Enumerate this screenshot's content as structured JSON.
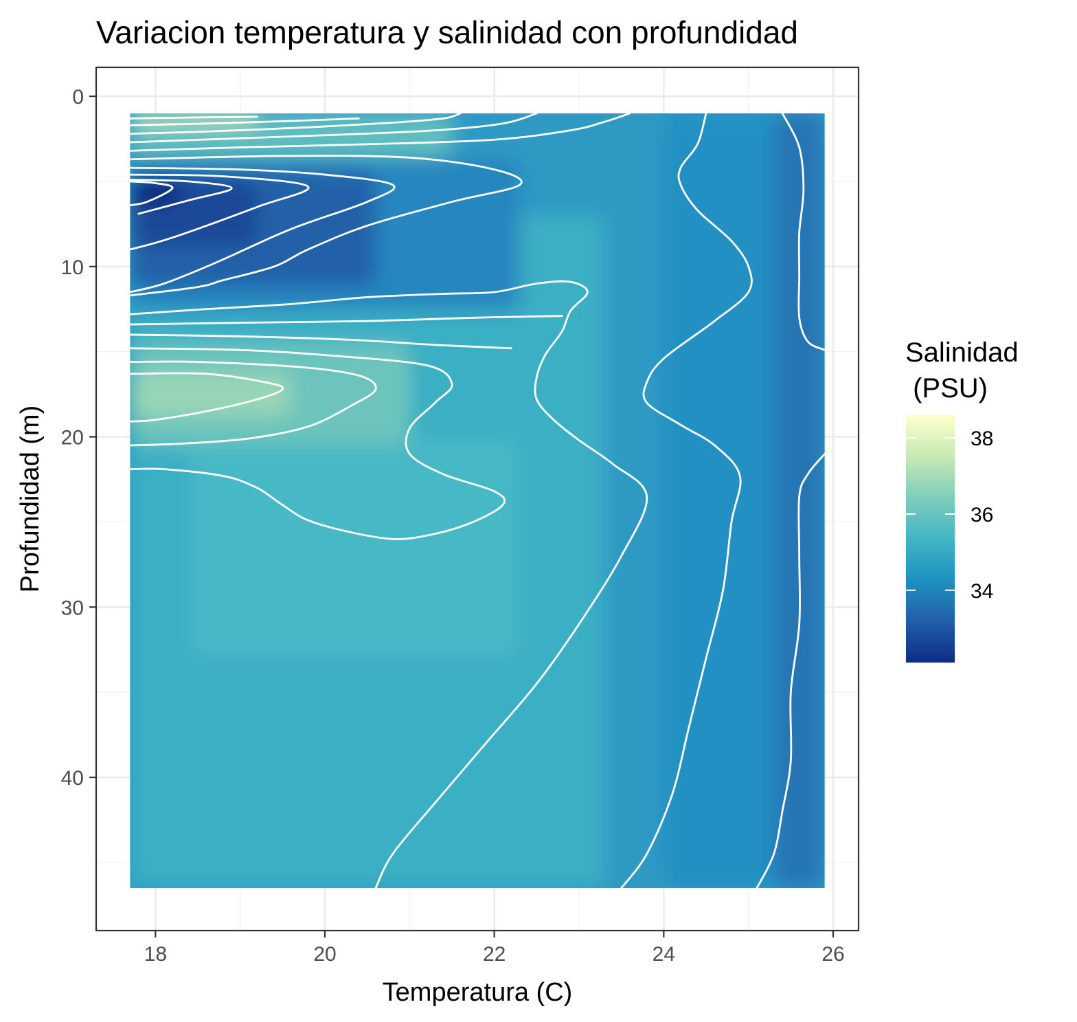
{
  "chart_data": {
    "type": "heatmap",
    "title": "Variacion temperatura y salinidad con profundidad",
    "xlabel": "Temperatura (C)",
    "ylabel": "Profundidad (m)",
    "x_range": [
      17.3,
      26.3
    ],
    "y_range": [
      49,
      -1.7
    ],
    "y_reversed": true,
    "x_ticks": [
      18,
      20,
      22,
      24,
      26
    ],
    "y_ticks": [
      0,
      10,
      20,
      30,
      40
    ],
    "x_tick_labels": [
      "18",
      "20",
      "22",
      "24",
      "26"
    ],
    "y_tick_labels": [
      "0",
      "10",
      "20",
      "30",
      "40"
    ],
    "grid": true,
    "data_extent": {
      "x": [
        17.7,
        25.9
      ],
      "y": [
        1,
        46.5
      ]
    },
    "legend": {
      "title_lines": [
        "Salinidad",
        " (PSU)"
      ],
      "position": "right",
      "range": [
        32.1,
        38.6
      ],
      "ticks": [
        34,
        36,
        38
      ],
      "tick_labels": [
        "34",
        "36",
        "38"
      ],
      "colors": [
        "#0c2c84",
        "#225ea8",
        "#1d91c0",
        "#41b6c4",
        "#7fcdbb",
        "#c7e9b4",
        "#ffffcc"
      ]
    },
    "contour_color": "#ffffff",
    "contour_lines": [
      [
        [
          17.7,
          1.3
        ],
        [
          18.4,
          1.25
        ],
        [
          19.2,
          1.2
        ]
      ],
      [
        [
          17.7,
          1.7
        ],
        [
          18.6,
          1.6
        ],
        [
          19.6,
          1.45
        ],
        [
          20.4,
          1.3
        ]
      ],
      [
        [
          17.7,
          2.2
        ],
        [
          18.7,
          2.05
        ],
        [
          19.9,
          1.8
        ],
        [
          20.8,
          1.55
        ],
        [
          21.4,
          1.3
        ],
        [
          21.6,
          1.0
        ]
      ],
      [
        [
          17.7,
          2.7
        ],
        [
          18.8,
          2.5
        ],
        [
          20.2,
          2.25
        ],
        [
          21.3,
          2.0
        ],
        [
          22.1,
          1.6
        ],
        [
          22.5,
          1.0
        ]
      ],
      [
        [
          17.7,
          3.2
        ],
        [
          19.0,
          3.0
        ],
        [
          20.6,
          2.8
        ],
        [
          22.0,
          2.55
        ],
        [
          22.9,
          2.0
        ],
        [
          23.3,
          1.5
        ],
        [
          23.6,
          1.0
        ]
      ],
      [
        [
          17.7,
          3.7
        ],
        [
          19.5,
          3.5
        ],
        [
          21.0,
          3.6
        ],
        [
          22.0,
          4.3
        ],
        [
          22.3,
          5.2
        ],
        [
          21.5,
          6.2
        ],
        [
          20.5,
          7.6
        ],
        [
          19.8,
          9.0
        ],
        [
          19.4,
          10.0
        ],
        [
          18.8,
          10.8
        ],
        [
          18.5,
          11.2
        ],
        [
          17.7,
          11.7
        ]
      ],
      [
        [
          17.7,
          4.2
        ],
        [
          19.0,
          4.3
        ],
        [
          20.0,
          4.6
        ],
        [
          20.8,
          5.2
        ],
        [
          20.5,
          6.2
        ],
        [
          19.6,
          7.8
        ],
        [
          18.7,
          9.8
        ],
        [
          18.1,
          11.0
        ],
        [
          17.7,
          11.5
        ]
      ],
      [
        [
          17.7,
          4.6
        ],
        [
          18.8,
          4.7
        ],
        [
          19.8,
          5.3
        ],
        [
          19.2,
          6.5
        ],
        [
          18.2,
          8.3
        ],
        [
          17.7,
          9.0
        ]
      ],
      [
        [
          17.7,
          4.9
        ],
        [
          18.4,
          5.0
        ],
        [
          18.9,
          5.4
        ],
        [
          18.4,
          6.1
        ],
        [
          17.8,
          6.9
        ]
      ],
      [
        [
          17.7,
          5.0
        ],
        [
          18.0,
          5.1
        ],
        [
          18.2,
          5.4
        ],
        [
          17.9,
          6.2
        ],
        [
          17.7,
          6.4
        ]
      ],
      [
        [
          17.7,
          12.8
        ],
        [
          18.6,
          12.5
        ],
        [
          19.6,
          12.2
        ],
        [
          20.5,
          11.8
        ],
        [
          21.4,
          11.6
        ],
        [
          22.0,
          11.5
        ],
        [
          22.5,
          11.0
        ],
        [
          22.9,
          10.9
        ],
        [
          23.1,
          11.5
        ],
        [
          22.9,
          12.6
        ],
        [
          22.8,
          13.8
        ],
        [
          22.6,
          15.2
        ],
        [
          22.5,
          16.5
        ],
        [
          22.5,
          17.8
        ],
        [
          22.7,
          19.0
        ],
        [
          23.0,
          20.2
        ],
        [
          23.4,
          21.6
        ],
        [
          23.8,
          23.5
        ],
        [
          23.5,
          27.0
        ],
        [
          23.0,
          31.0
        ],
        [
          22.5,
          34.5
        ],
        [
          21.9,
          38.0
        ],
        [
          21.3,
          41.5
        ],
        [
          20.8,
          44.5
        ],
        [
          20.6,
          46.5
        ]
      ],
      [
        [
          17.7,
          13.4
        ],
        [
          19.0,
          13.3
        ],
        [
          20.5,
          13.2
        ],
        [
          21.8,
          13.0
        ],
        [
          22.8,
          12.9
        ]
      ],
      [
        [
          17.7,
          14.0
        ],
        [
          19.0,
          14.1
        ],
        [
          20.3,
          14.3
        ],
        [
          21.3,
          14.6
        ],
        [
          22.2,
          14.8
        ]
      ],
      [
        [
          17.7,
          14.8
        ],
        [
          19.0,
          14.9
        ],
        [
          20.0,
          15.2
        ],
        [
          21.2,
          15.8
        ],
        [
          21.5,
          16.9
        ],
        [
          21.3,
          18.0
        ],
        [
          21.0,
          19.5
        ],
        [
          21.0,
          21.0
        ],
        [
          21.4,
          22.2
        ],
        [
          22.0,
          23.2
        ],
        [
          22.1,
          24.0
        ],
        [
          21.7,
          25.1
        ],
        [
          21.2,
          25.8
        ],
        [
          20.8,
          26.0
        ],
        [
          20.3,
          25.6
        ],
        [
          19.8,
          24.9
        ],
        [
          19.5,
          24.0
        ],
        [
          19.2,
          23.0
        ],
        [
          18.8,
          22.3
        ],
        [
          18.1,
          21.9
        ],
        [
          17.7,
          21.9
        ]
      ],
      [
        [
          17.7,
          15.6
        ],
        [
          18.5,
          15.6
        ],
        [
          19.7,
          15.9
        ],
        [
          20.4,
          16.4
        ],
        [
          20.6,
          17.2
        ],
        [
          20.3,
          18.2
        ],
        [
          19.8,
          19.4
        ],
        [
          19.1,
          20.1
        ],
        [
          18.3,
          20.4
        ],
        [
          17.7,
          20.5
        ]
      ],
      [
        [
          17.7,
          16.3
        ],
        [
          18.6,
          16.3
        ],
        [
          19.3,
          16.8
        ],
        [
          19.5,
          17.2
        ],
        [
          19.2,
          17.8
        ],
        [
          18.6,
          18.5
        ],
        [
          18.0,
          19.0
        ],
        [
          17.7,
          19.1
        ]
      ],
      [
        [
          24.5,
          1.0
        ],
        [
          24.4,
          2.8
        ],
        [
          24.2,
          4.2
        ],
        [
          24.2,
          5.2
        ],
        [
          24.4,
          6.7
        ],
        [
          24.8,
          8.5
        ],
        [
          25.0,
          10.0
        ],
        [
          25.0,
          11.5
        ],
        [
          24.6,
          13.2
        ],
        [
          24.0,
          15.4
        ],
        [
          23.8,
          16.8
        ],
        [
          23.8,
          18.0
        ],
        [
          24.2,
          19.3
        ],
        [
          24.6,
          20.5
        ],
        [
          24.9,
          22.3
        ],
        [
          24.8,
          25.0
        ],
        [
          24.7,
          29.0
        ],
        [
          24.5,
          33.0
        ],
        [
          24.3,
          37.0
        ],
        [
          24.1,
          41.0
        ],
        [
          23.8,
          44.5
        ],
        [
          23.5,
          46.5
        ]
      ],
      [
        [
          25.4,
          1.0
        ],
        [
          25.6,
          3.0
        ],
        [
          25.65,
          5.5
        ],
        [
          25.6,
          8.0
        ],
        [
          25.6,
          10.5
        ],
        [
          25.6,
          13.0
        ],
        [
          25.7,
          14.4
        ],
        [
          25.9,
          14.9
        ]
      ],
      [
        [
          25.9,
          21.0
        ],
        [
          25.7,
          22.2
        ],
        [
          25.6,
          23.5
        ],
        [
          25.6,
          27.0
        ],
        [
          25.6,
          31.0
        ],
        [
          25.5,
          35.0
        ],
        [
          25.5,
          39.0
        ],
        [
          25.4,
          42.0
        ],
        [
          25.3,
          44.5
        ],
        [
          25.1,
          46.5
        ]
      ]
    ]
  }
}
